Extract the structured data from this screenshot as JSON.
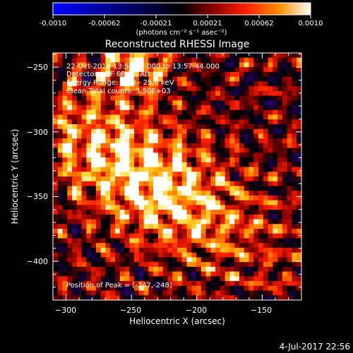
{
  "colorbar": {
    "ticks": [
      "-0.0010",
      "-0.00062",
      "-0.00021",
      "0.00021",
      "0.00062",
      "0.0010"
    ],
    "units_label": "(photons cm⁻² s⁻¹ asec⁻²)",
    "colors": [
      "#0000ff",
      "#000000",
      "#8b0000",
      "#ff2000",
      "#ff9000",
      "#ffffff"
    ]
  },
  "title": "Reconstructed RHESSI Image",
  "annotations": {
    "time_range": "22-Oct-2014 13:57:44.000 to 13:57:44.000",
    "detectors": "Detectors: 3F 6F 9F, Att 0",
    "energy_range": "Energy Range: 12.0 - 25.0 keV",
    "method_counts": "Clean     Total counts: 3.50E+03",
    "peak_position": "Position of Peak = [-247,-248]"
  },
  "footer_timestamp": "4-Jul-2017 22:56",
  "chart_data": {
    "type": "heatmap",
    "title": "Reconstructed RHESSI Image",
    "xlabel": "Heliocentric X (arcsec)",
    "ylabel": "Heliocentric Y (arcsec)",
    "xlim": [
      -310,
      -120
    ],
    "ylim": [
      -430,
      -239
    ],
    "x_ticks": [
      -300,
      -250,
      -200,
      -150
    ],
    "y_ticks": [
      -250,
      -300,
      -350,
      -400
    ],
    "x_tick_labels": [
      "−300",
      "−250",
      "−200",
      "−150"
    ],
    "y_tick_labels": [
      "−250",
      "−300",
      "−350",
      "−400"
    ],
    "value_range": [
      -0.001,
      0.001
    ],
    "peak": [
      -247,
      -248
    ],
    "grid": false,
    "legend": "colorbar-top"
  }
}
